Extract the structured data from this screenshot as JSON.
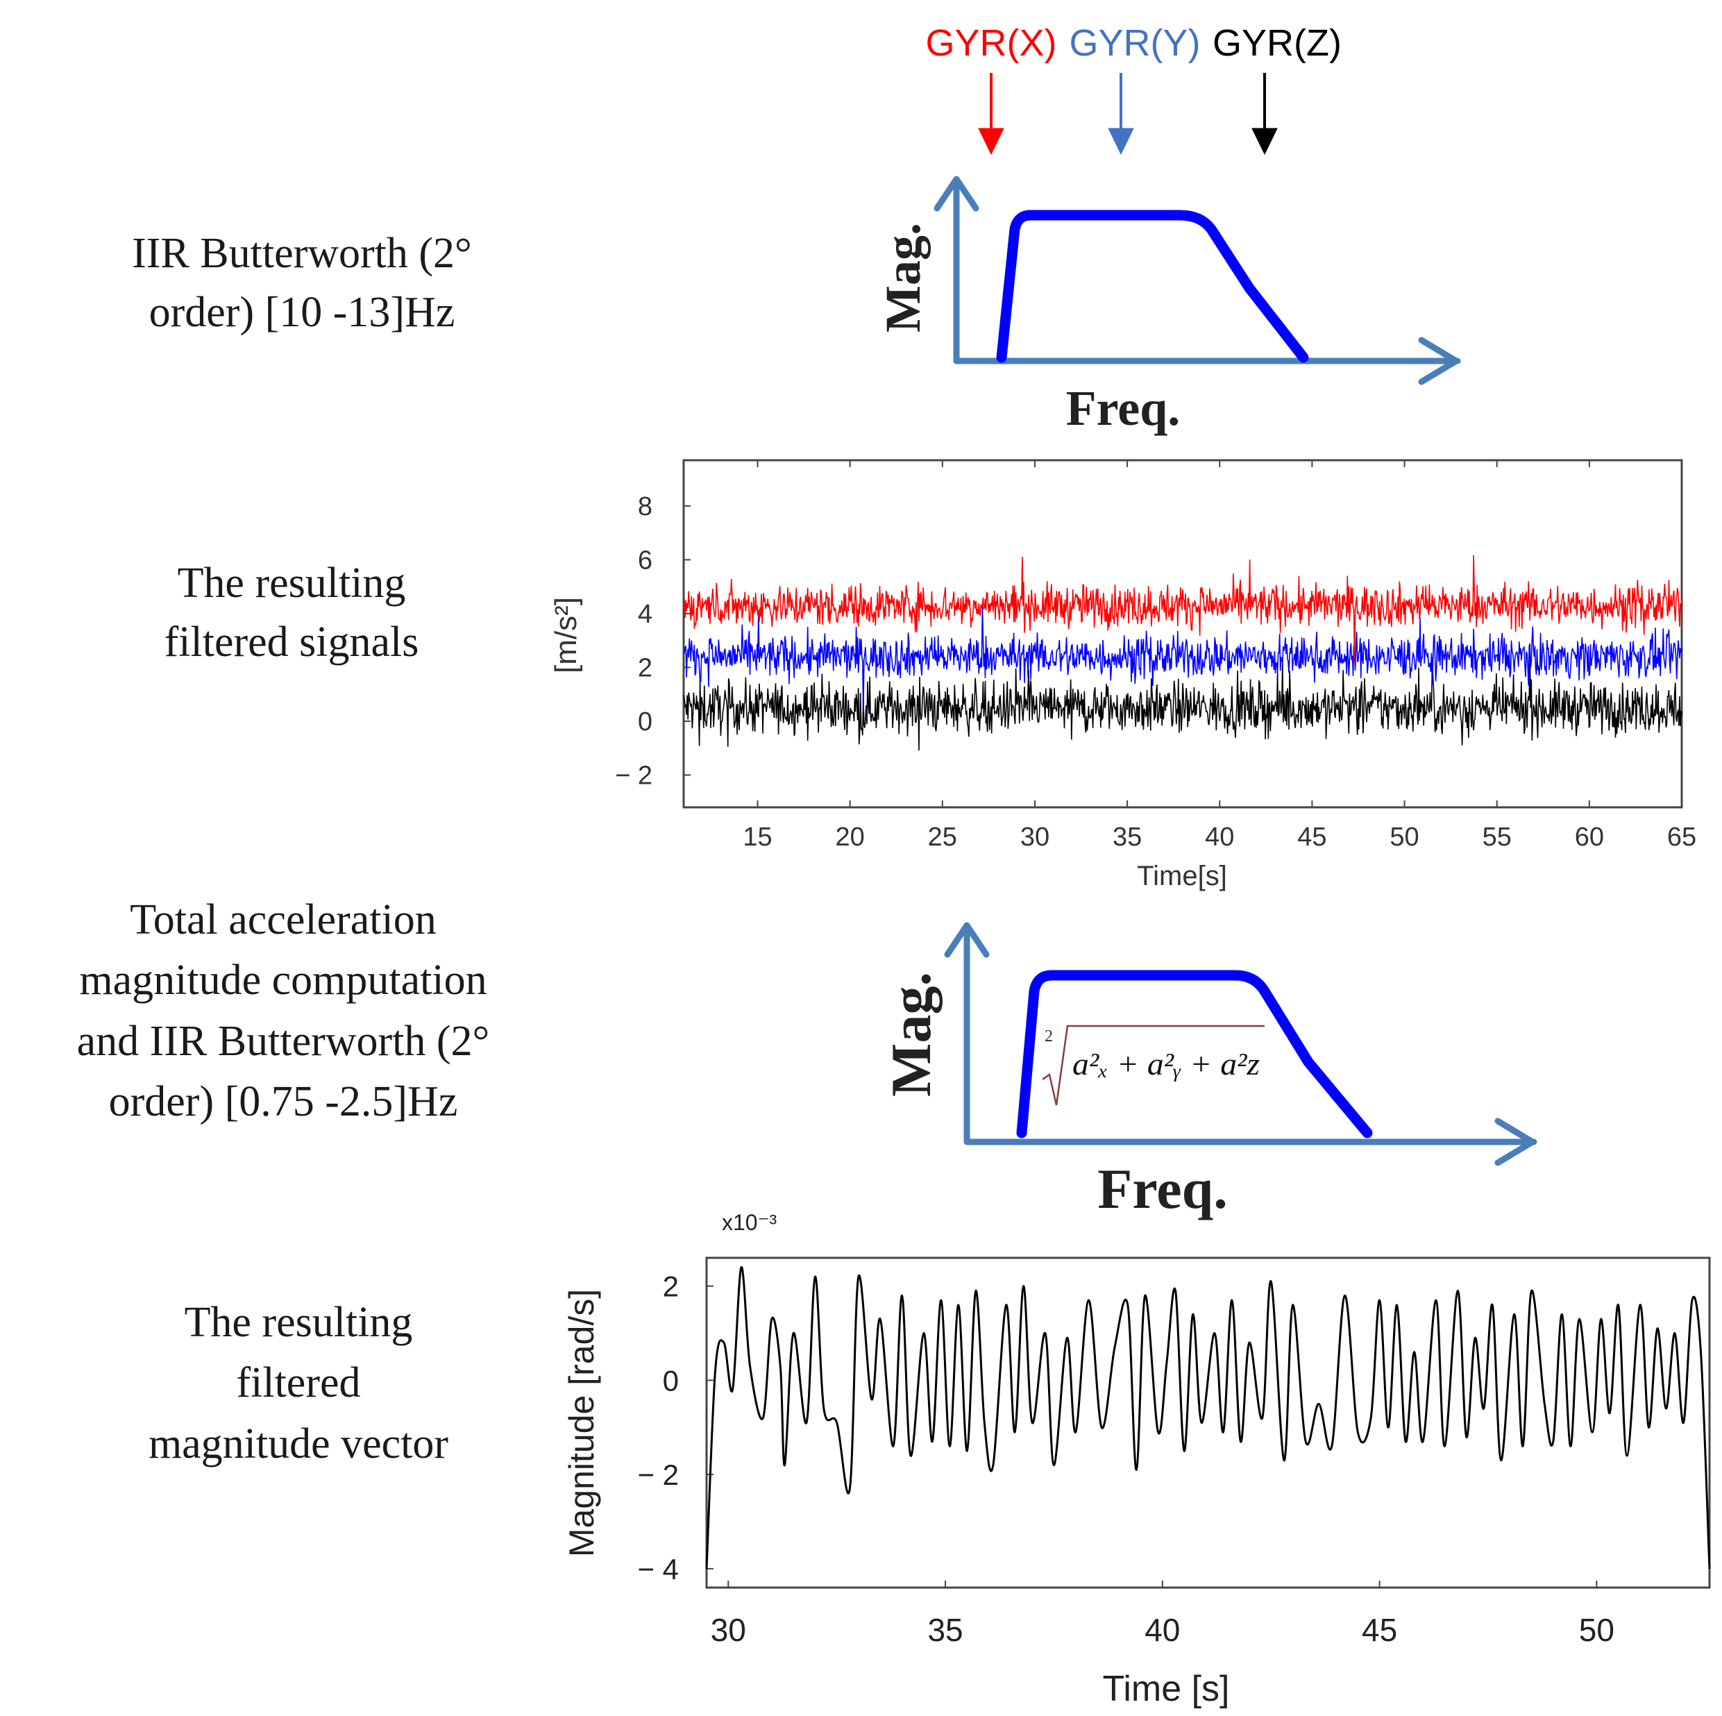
{
  "stages": {
    "filter1_label_line1": "IIR Butterworth (2°",
    "filter1_label_line2": "order) [10 -13]Hz",
    "signals_label_line1": "The resulting",
    "signals_label_line2": "filtered signals",
    "filter2_label_line1": "Total acceleration",
    "filter2_label_line2": "magnitude computation",
    "filter2_label_line3": "and IIR Butterworth (2°",
    "filter2_label_line4": "order) [0.75 -2.5]Hz",
    "magnitude_label_line1": "The resulting",
    "magnitude_label_line2": "filtered",
    "magnitude_label_line3": "magnitude vector"
  },
  "filter_diagram": {
    "y_axis_label": "Mag.",
    "x_axis_label": "Freq.",
    "inputs": [
      {
        "label": "GYR(X)",
        "color": "#ff0000"
      },
      {
        "label": "GYR(Y)",
        "color": "#4472c4"
      },
      {
        "label": "GYR(Z)",
        "color": "#000000"
      }
    ],
    "axis_color": "#4a7ebb",
    "response_color": "#0000ff"
  },
  "formula": {
    "root_index": "2",
    "expression": "a²ₓ + a²ᵧ + a²z"
  },
  "chart_data": [
    {
      "type": "line",
      "title": "",
      "xlabel": "Time[s]",
      "ylabel": "[m/s²]",
      "xlim": [
        11,
        65
      ],
      "ylim": [
        -3.2,
        9.7
      ],
      "xticks": [
        "15",
        "20",
        "25",
        "30",
        "35",
        "40",
        "45",
        "50",
        "55",
        "60",
        "65"
      ],
      "yticks": [
        "8",
        "6",
        "4",
        "2",
        "0",
        "− 2"
      ],
      "series": [
        {
          "name": "GYR(X)",
          "color": "#ff0000",
          "mean": 4.3,
          "noise_amplitude": 1.0
        },
        {
          "name": "GYR(Y)",
          "color": "#0000ff",
          "mean": 2.4,
          "noise_amplitude": 1.0
        },
        {
          "name": "GYR(Z)",
          "color": "#000000",
          "mean": 0.5,
          "noise_amplitude": 1.2
        }
      ]
    },
    {
      "type": "line",
      "title": "",
      "xlabel": "Time [s]",
      "ylabel": "Magnitude [rad/s]",
      "scale_label": "x10⁻³",
      "xlim": [
        29.5,
        52.6
      ],
      "ylim": [
        -4.4,
        2.6
      ],
      "xticks": [
        "30",
        "35",
        "40",
        "45",
        "50"
      ],
      "yticks": [
        "2",
        "0",
        "− 2",
        "− 4"
      ],
      "series": [
        {
          "name": "magnitude",
          "color": "#000000",
          "x": [
            29.5,
            29.7,
            29.9,
            30.1,
            30.3,
            30.5,
            30.8,
            31.0,
            31.2,
            31.3,
            31.5,
            31.8,
            32.0,
            32.2,
            32.5,
            32.8,
            33.0,
            33.3,
            33.5,
            33.8,
            34.0,
            34.2,
            34.5,
            34.7,
            34.9,
            35.1,
            35.3,
            35.5,
            35.7,
            35.9,
            36.1,
            36.4,
            36.6,
            36.8,
            37.0,
            37.3,
            37.5,
            37.8,
            38.0,
            38.3,
            38.6,
            38.9,
            39.2,
            39.4,
            39.6,
            39.9,
            40.1,
            40.3,
            40.5,
            40.7,
            40.9,
            41.2,
            41.4,
            41.6,
            41.8,
            42.0,
            42.3,
            42.5,
            42.8,
            43.0,
            43.3,
            43.6,
            43.9,
            44.2,
            44.5,
            44.8,
            45.0,
            45.2,
            45.4,
            45.6,
            45.8,
            46.0,
            46.3,
            46.5,
            46.8,
            47.0,
            47.2,
            47.4,
            47.6,
            47.8,
            48.1,
            48.3,
            48.5,
            48.8,
            49.0,
            49.2,
            49.4,
            49.6,
            49.9,
            50.1,
            50.3,
            50.5,
            50.7,
            51.0,
            51.2,
            51.4,
            51.6,
            51.8,
            52.0,
            52.2,
            52.4,
            52.6
          ],
          "y": [
            -4.0,
            0.2,
            0.8,
            -0.2,
            2.4,
            0.3,
            -0.8,
            1.3,
            0.3,
            -1.8,
            1.0,
            -0.9,
            2.2,
            -0.6,
            -0.9,
            -2.3,
            2.2,
            -0.4,
            1.3,
            -1.4,
            1.8,
            -1.6,
            1.0,
            -1.3,
            1.7,
            -1.4,
            1.6,
            -1.5,
            1.9,
            -0.9,
            -1.8,
            1.6,
            -1.1,
            2.0,
            -0.9,
            1.0,
            -1.8,
            0.9,
            -1.1,
            1.7,
            -1.0,
            0.7,
            1.6,
            -1.9,
            1.8,
            -1.1,
            0.4,
            1.9,
            -1.5,
            1.4,
            -0.9,
            1.0,
            -1.1,
            1.7,
            -1.3,
            0.8,
            -0.8,
            2.1,
            -1.7,
            1.6,
            -1.3,
            -0.5,
            -1.4,
            1.8,
            -1.1,
            -0.8,
            1.7,
            -1.0,
            1.6,
            -1.3,
            0.6,
            -1.3,
            1.7,
            -1.4,
            1.9,
            -1.2,
            0.9,
            -0.6,
            1.6,
            -1.7,
            1.4,
            -1.4,
            1.9,
            -0.5,
            -1.3,
            1.4,
            -1.4,
            1.3,
            -1.1,
            1.3,
            -0.7,
            1.6,
            -1.6,
            1.6,
            -1.0,
            1.1,
            -0.6,
            1.0,
            -0.9,
            1.7,
            0.6,
            -4.0
          ]
        }
      ]
    }
  ]
}
